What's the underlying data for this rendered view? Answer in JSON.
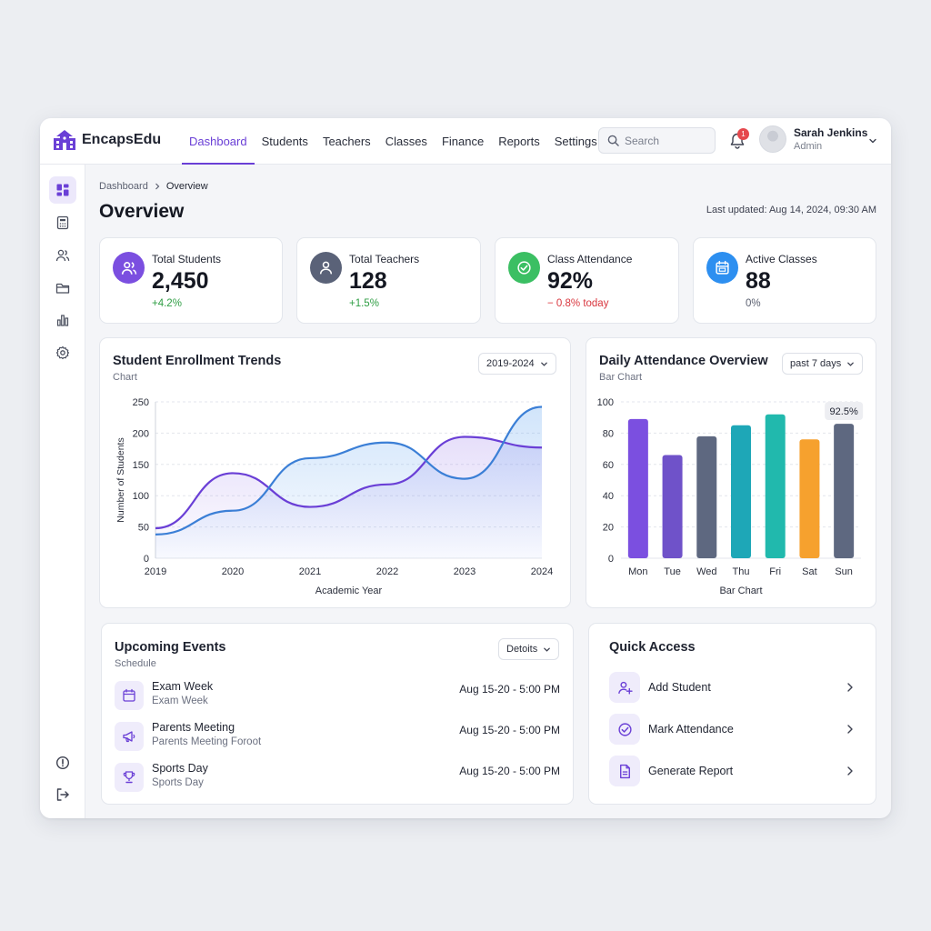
{
  "app": {
    "name": "EncapsEdu"
  },
  "nav": {
    "items": [
      "Dashboard",
      "Students",
      "Teachers",
      "Classes",
      "Finance",
      "Reports",
      "Settings"
    ],
    "active": 0
  },
  "search": {
    "placeholder": "Search"
  },
  "notifications": {
    "count": "1"
  },
  "user": {
    "name": "Sarah Jenkins",
    "role": "Admin"
  },
  "breadcrumb": {
    "parent": "Dashboard",
    "current": "Overview"
  },
  "page": {
    "title": "Overview",
    "updated": "Last updated: Aug 14, 2024, 09:30 AM"
  },
  "stats": [
    {
      "label": "Total Students",
      "value": "2,450",
      "delta": "+4.2%",
      "delta_color": "#2f9e44",
      "icon": "users-icon",
      "icon_bg": "#7b4fe0"
    },
    {
      "label": "Total Teachers",
      "value": "128",
      "delta": "+1.5%",
      "delta_color": "#2f9e44",
      "icon": "teacher-icon",
      "icon_bg": "#5a6278"
    },
    {
      "label": "Class Attendance",
      "value": "92%",
      "delta": "− 0.8% today",
      "delta_color": "#d9363e",
      "icon": "check-circle-icon",
      "icon_bg": "#3bbf63"
    },
    {
      "label": "Active Classes",
      "value": "88",
      "delta": "0%",
      "delta_color": "#5b6070",
      "icon": "calendar-icon",
      "icon_bg": "#2d8ff0"
    }
  ],
  "enrollment": {
    "title": "Student Enrollment Trends",
    "subtitle": "Chart",
    "range": "2019-2024"
  },
  "attendance": {
    "title": "Daily Attendance Overview",
    "subtitle": "Bar Chart",
    "range": "past 7 days"
  },
  "chart_data": [
    {
      "type": "line",
      "title": "Student Enrollment Trends",
      "subtitle": "Chart",
      "xlabel": "Academic Year",
      "ylabel": "Number of Students",
      "x_ticks": [
        "2019",
        "2020",
        "2021",
        "2022",
        "2023",
        "2024"
      ],
      "y_ticks": [
        0,
        50,
        100,
        150,
        200,
        250
      ],
      "ylim": [
        0,
        250
      ],
      "xlim": [
        2019,
        2024
      ],
      "grid": true,
      "series": [
        {
          "color": "#6a3fd6",
          "x": [
            2019,
            2020,
            2021,
            2022,
            2023,
            2024
          ],
          "y": [
            48,
            136,
            82,
            118,
            194,
            177
          ]
        },
        {
          "color": "#3b7fd6",
          "x": [
            2019,
            2020,
            2021,
            2022,
            2023,
            2024
          ],
          "y": [
            38,
            76,
            160,
            185,
            127,
            242
          ]
        }
      ]
    },
    {
      "type": "bar",
      "title": "Daily Attendance Overview",
      "subtitle": "Bar Chart",
      "xlabel": "Bar Chart",
      "categories": [
        "Mon",
        "Tue",
        "Wed",
        "Thu",
        "Fri",
        "Sat",
        "Sun"
      ],
      "values": [
        89,
        66,
        78,
        85,
        92,
        76,
        86
      ],
      "colors": [
        "#7b4fe0",
        "#6f52c9",
        "#5e6880",
        "#1ea7b7",
        "#21b9ad",
        "#f6a12e",
        "#5e6880"
      ],
      "y_ticks": [
        0,
        20,
        40,
        60,
        80,
        100
      ],
      "ylim": [
        0,
        100
      ],
      "grid": true,
      "annotation": "92.5%"
    }
  ],
  "events": {
    "title": "Upcoming Events",
    "subtitle": "Schedule",
    "filter": "Detoits",
    "items": [
      {
        "title": "Exam Week",
        "sub": "Exam Week",
        "time": "Aug 15-20 - 5:00 PM",
        "icon": "calendar-icon"
      },
      {
        "title": "Parents Meeting",
        "sub": "Parents Meeting Foroot",
        "time": "Aug 15-20 - 5:00 PM",
        "icon": "megaphone-icon"
      },
      {
        "title": "Sports Day",
        "sub": "Sports Day",
        "time": "Aug 15-20 - 5:00 PM",
        "icon": "trophy-icon"
      }
    ]
  },
  "quick": {
    "title": "Quick Access",
    "items": [
      {
        "label": "Add Student",
        "icon": "user-plus-icon"
      },
      {
        "label": "Mark Attendance",
        "icon": "check-circle-icon"
      },
      {
        "label": "Generate Report",
        "icon": "document-icon"
      }
    ]
  }
}
